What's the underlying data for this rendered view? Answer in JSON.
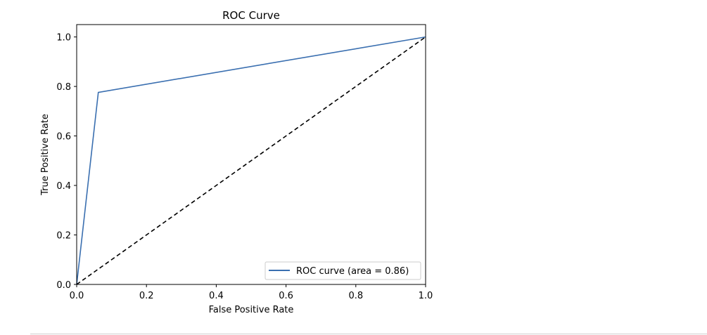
{
  "chart_data": {
    "type": "line",
    "title": "ROC Curve",
    "xlabel": "False Positive Rate",
    "ylabel": "True Positive Rate",
    "xlim": [
      0.0,
      1.0
    ],
    "ylim": [
      0.0,
      1.05
    ],
    "xticks": [
      "0.0",
      "0.2",
      "0.4",
      "0.6",
      "0.8",
      "1.0"
    ],
    "yticks": [
      "0.0",
      "0.2",
      "0.4",
      "0.6",
      "0.8",
      "1.0"
    ],
    "grid": false,
    "legend_position": "lower right",
    "series": [
      {
        "name": "ROC curve (area = 0.86)",
        "color": "#3a6fb0",
        "style": "solid",
        "x": [
          0.0,
          0.062,
          1.0
        ],
        "y": [
          0.0,
          0.776,
          1.0
        ]
      },
      {
        "color": "#000000",
        "style": "dashed",
        "x": [
          0.0,
          1.0
        ],
        "y": [
          0.0,
          1.0
        ]
      }
    ]
  }
}
